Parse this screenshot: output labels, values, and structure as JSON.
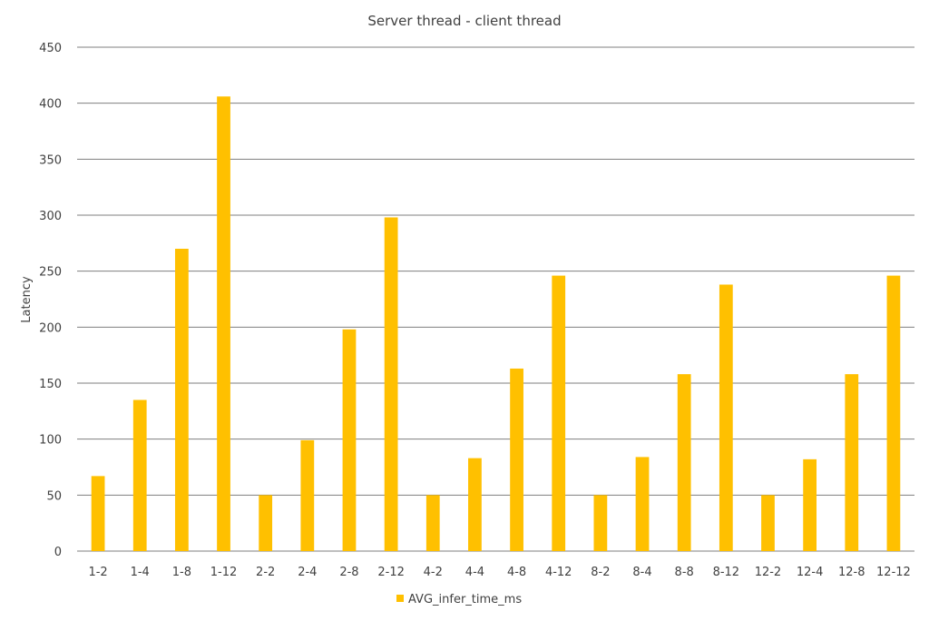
{
  "chart_data": {
    "type": "bar",
    "title": "Server thread - client thread",
    "xlabel": "",
    "ylabel": "Latency",
    "ylim": [
      0,
      450
    ],
    "yticks": [
      0,
      50,
      100,
      150,
      200,
      250,
      300,
      350,
      400,
      450
    ],
    "grid": true,
    "legend_position": "bottom",
    "categories": [
      "1-2",
      "1-4",
      "1-8",
      "1-12",
      "2-2",
      "2-4",
      "2-8",
      "2-12",
      "4-2",
      "4-4",
      "4-8",
      "4-12",
      "8-2",
      "8-4",
      "8-8",
      "8-12",
      "12-2",
      "12-4",
      "12-8",
      "12-12"
    ],
    "series": [
      {
        "name": "AVG_infer_time_ms",
        "color": "#FFC000",
        "values": [
          67,
          135,
          270,
          406,
          50,
          99,
          198,
          298,
          50,
          83,
          163,
          246,
          50,
          84,
          158,
          238,
          50,
          82,
          158,
          246
        ]
      }
    ]
  }
}
